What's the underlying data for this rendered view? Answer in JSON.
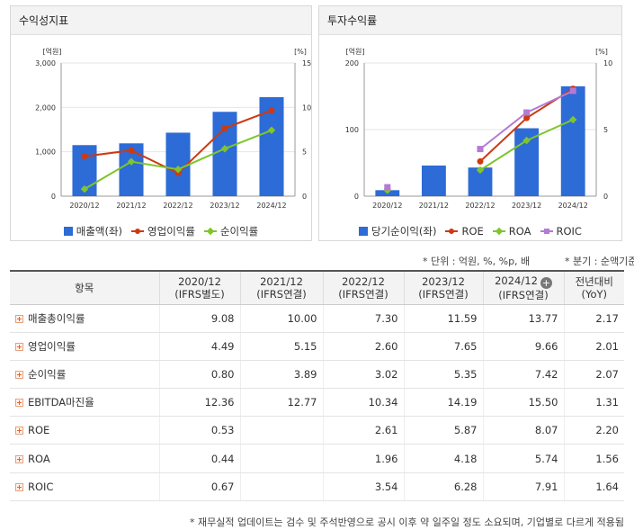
{
  "colors": {
    "bar": "#2d6bd6",
    "op_margin": "#cc3a12",
    "net_margin": "#7ec62b",
    "roe": "#cc3a12",
    "roa": "#7ec62b",
    "roic": "#b37ad6"
  },
  "left_panel": {
    "title": "수익성지표",
    "y_left_unit": "[억원]",
    "y_right_unit": "[%]",
    "legend": [
      {
        "label": "매출액(좌)",
        "type": "bar",
        "icon": "square-bar-swatch"
      },
      {
        "label": "영업이익률",
        "type": "line-circle",
        "icon": "circle-line-swatch"
      },
      {
        "label": "순이익률",
        "type": "line-diamond",
        "icon": "diamond-line-swatch"
      }
    ]
  },
  "right_panel": {
    "title": "투자수익률",
    "y_left_unit": "[억원]",
    "y_right_unit": "[%]",
    "legend": [
      {
        "label": "당기순이익(좌)",
        "type": "bar",
        "icon": "square-bar-swatch"
      },
      {
        "label": "ROE",
        "type": "line-circle",
        "icon": "circle-line-swatch"
      },
      {
        "label": "ROA",
        "type": "line-diamond",
        "icon": "diamond-line-swatch"
      },
      {
        "label": "ROIC",
        "type": "line-square",
        "icon": "square-line-swatch"
      }
    ]
  },
  "chart_data": [
    {
      "type": "bar",
      "title": "수익성지표",
      "categories": [
        "2020/12",
        "2021/12",
        "2022/12",
        "2023/12",
        "2024/12"
      ],
      "y_left": {
        "ticks": [
          "0",
          "1,000",
          "2,000",
          "3,000"
        ],
        "range": [
          0,
          3000
        ]
      },
      "y_right": {
        "ticks": [
          "0",
          "5",
          "10",
          "15"
        ],
        "range": [
          0,
          15
        ]
      },
      "series": [
        {
          "name": "매출액(좌)",
          "kind": "bar",
          "axis": "left",
          "values": [
            1150,
            1190,
            1430,
            1900,
            2230
          ]
        },
        {
          "name": "영업이익률",
          "kind": "line",
          "axis": "right",
          "marker": "circle",
          "values": [
            4.49,
            5.15,
            2.6,
            7.65,
            9.66
          ]
        },
        {
          "name": "순이익률",
          "kind": "line",
          "axis": "right",
          "marker": "diamond",
          "values": [
            0.8,
            3.89,
            3.02,
            5.35,
            7.42
          ]
        }
      ]
    },
    {
      "type": "bar",
      "title": "투자수익률",
      "categories": [
        "2020/12",
        "2021/12",
        "2022/12",
        "2023/12",
        "2024/12"
      ],
      "y_left": {
        "ticks": [
          "0",
          "100",
          "200"
        ],
        "range": [
          0,
          200
        ]
      },
      "y_right": {
        "ticks": [
          "0",
          "5",
          "10"
        ],
        "range": [
          0,
          10
        ]
      },
      "series": [
        {
          "name": "당기순이익(좌)",
          "kind": "bar",
          "axis": "left",
          "values": [
            9,
            46,
            43,
            102,
            165
          ]
        },
        {
          "name": "ROE",
          "kind": "line",
          "axis": "right",
          "marker": "circle",
          "values": [
            0.53,
            null,
            2.61,
            5.87,
            8.07
          ]
        },
        {
          "name": "ROA",
          "kind": "line",
          "axis": "right",
          "marker": "diamond",
          "values": [
            0.44,
            null,
            1.96,
            4.18,
            5.74
          ]
        },
        {
          "name": "ROIC",
          "kind": "line",
          "axis": "right",
          "marker": "square",
          "values": [
            0.67,
            null,
            3.54,
            6.28,
            7.91
          ]
        }
      ]
    }
  ],
  "notes": {
    "unit": "* 단위 : 억원, %, %p, 배",
    "period": "* 분기 : 순액기준"
  },
  "table": {
    "header": {
      "item": "항목",
      "yoy_line1": "전년대비",
      "yoy_line2": "(YoY)"
    },
    "columns": [
      {
        "period": "2020/12",
        "basis": "(IFRS별도)"
      },
      {
        "period": "2021/12",
        "basis": "(IFRS연결)"
      },
      {
        "period": "2022/12",
        "basis": "(IFRS연결)"
      },
      {
        "period": "2023/12",
        "basis": "(IFRS연결)"
      },
      {
        "period": "2024/12",
        "basis": "(IFRS연결)"
      }
    ],
    "rows": [
      {
        "label": "매출총이익률",
        "values": [
          "9.08",
          "10.00",
          "7.30",
          "11.59",
          "13.77"
        ],
        "yoy": "2.17"
      },
      {
        "label": "영업이익률",
        "values": [
          "4.49",
          "5.15",
          "2.60",
          "7.65",
          "9.66"
        ],
        "yoy": "2.01"
      },
      {
        "label": "순이익률",
        "values": [
          "0.80",
          "3.89",
          "3.02",
          "5.35",
          "7.42"
        ],
        "yoy": "2.07"
      },
      {
        "label": "EBITDA마진율",
        "values": [
          "12.36",
          "12.77",
          "10.34",
          "14.19",
          "15.50"
        ],
        "yoy": "1.31"
      },
      {
        "label": "ROE",
        "values": [
          "0.53",
          "",
          "2.61",
          "5.87",
          "8.07"
        ],
        "yoy": "2.20"
      },
      {
        "label": "ROA",
        "values": [
          "0.44",
          "",
          "1.96",
          "4.18",
          "5.74"
        ],
        "yoy": "1.56"
      },
      {
        "label": "ROIC",
        "values": [
          "0.67",
          "",
          "3.54",
          "6.28",
          "7.91"
        ],
        "yoy": "1.64"
      }
    ]
  },
  "footnote": "* 재무실적 업데이트는 검수 및 주석반영으로 공시 이후 약 일주일 정도 소요되며, 기업별로 다르게 적용됨"
}
